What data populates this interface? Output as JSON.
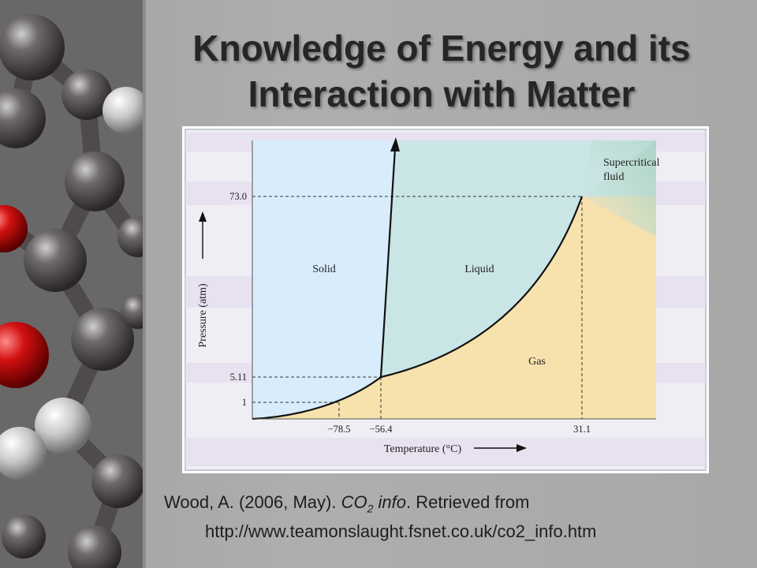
{
  "slide": {
    "title_line1": "Knowledge of Energy and its",
    "title_line2": "Interaction with Matter"
  },
  "diagram": {
    "regions": {
      "solid": "Solid",
      "liquid": "Liquid",
      "gas": "Gas",
      "supercritical_line1": "Supercritical",
      "supercritical_line2": "fluid"
    },
    "y_axis_label": "Pressure (atm)",
    "x_axis_label": "Temperature (°C)",
    "y_ticks": [
      "73.0",
      "5.11",
      "1"
    ],
    "x_ticks": [
      "−78.5",
      "−56.4",
      "31.1"
    ],
    "colors": {
      "solid": "#d8ecfb",
      "liquid": "#c9e5e6",
      "gas": "#f7e1ad",
      "background_band": "#e4dcee"
    }
  },
  "citation": {
    "author": "Wood, A. (2006, May). ",
    "title_prefix": "CO",
    "title_subscript": "2",
    "title_suffix": " info",
    "retrieved": ". Retrieved from",
    "url": "http://www.teamonslaught.fsnet.co.uk/co2_info.htm"
  }
}
